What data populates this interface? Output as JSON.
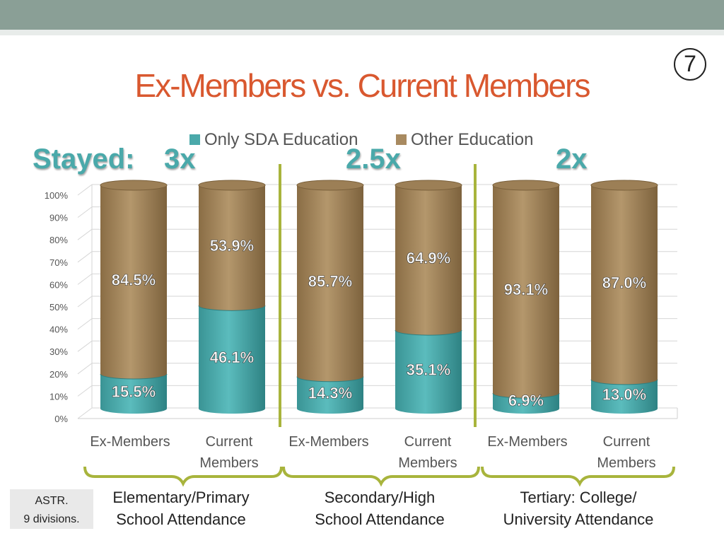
{
  "slide_number": "7",
  "title": "Ex-Members vs. Current Members",
  "colors": {
    "sda": "#4aa9aa",
    "other": "#a88a60",
    "title": "#d9582f",
    "divider": "#a8b43c",
    "stayed": "#4aa9aa"
  },
  "stayed": {
    "label": "Stayed:",
    "elementary": "3x",
    "secondary": "2.5x",
    "tertiary": "2x"
  },
  "legend": [
    "Only SDA Education",
    "Other Education"
  ],
  "x_labels": [
    "Ex-Members",
    "Current Members",
    "Ex-Members",
    "Current Members",
    "Ex-Members",
    "Current Members"
  ],
  "groups": [
    [
      "Elementary/Primary",
      "School Attendance"
    ],
    [
      "Secondary/High",
      "School Attendance"
    ],
    [
      "Tertiary: College/",
      "University Attendance"
    ]
  ],
  "note": [
    "ASTR.",
    "9 divisions."
  ],
  "chart_data": {
    "type": "bar",
    "stacked": true,
    "categories": [
      "Ex-Members",
      "Current Members",
      "Ex-Members",
      "Current Members",
      "Ex-Members",
      "Current Members"
    ],
    "series": [
      {
        "name": "Only SDA Education",
        "values": [
          15.5,
          46.1,
          14.3,
          35.1,
          6.9,
          13.0
        ],
        "labels": [
          "15.5%",
          "46.1%",
          "14.3%",
          "35.1%",
          "6.9%",
          "13.0%"
        ]
      },
      {
        "name": "Other Education",
        "values": [
          84.5,
          53.9,
          85.7,
          64.9,
          93.1,
          87.0
        ],
        "labels": [
          "84.5%",
          "53.9%",
          "85.7%",
          "64.9%",
          "93.1%",
          "87.0%"
        ]
      }
    ],
    "y_ticks": [
      "0%",
      "10%",
      "20%",
      "30%",
      "40%",
      "50%",
      "60%",
      "70%",
      "80%",
      "90%",
      "100%"
    ],
    "ylim": [
      0,
      100
    ],
    "grid": true,
    "legend_position": "top"
  }
}
